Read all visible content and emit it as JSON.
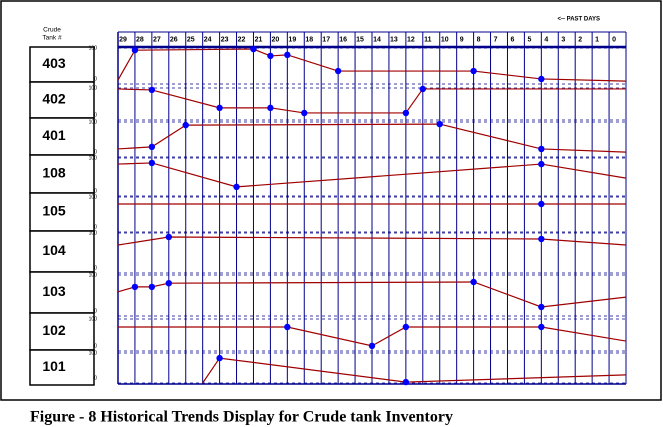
{
  "chart_data": {
    "type": "line",
    "annotation": "<-- PAST DAYS",
    "row_header": [
      "Crude",
      "Tank #"
    ],
    "caption": "Figure - 8 Historical Trends Display for Crude tank Inventory",
    "xlim": [
      29,
      -1
    ],
    "xticks": [
      29,
      28,
      27,
      26,
      25,
      24,
      23,
      22,
      21,
      20,
      19,
      18,
      17,
      16,
      15,
      14,
      13,
      12,
      11,
      10,
      9,
      8,
      7,
      6,
      5,
      4,
      3,
      2,
      1,
      0
    ],
    "ylim": [
      0,
      100
    ],
    "yticks": [
      0,
      100
    ],
    "line_color": "#a00000",
    "marker_color": "#0000ff",
    "grid_color": "#00008b",
    "series": [
      {
        "name": "403",
        "x": [
          29,
          28,
          21,
          20,
          19,
          16,
          8,
          4,
          -1
        ],
        "values": [
          11,
          94,
          97,
          78,
          81,
          36,
          36,
          14,
          8
        ]
      },
      {
        "name": "402",
        "x": [
          29,
          27,
          23,
          20,
          18,
          12,
          11,
          -1
        ],
        "values": [
          97,
          94,
          38,
          38,
          22,
          22,
          97,
          97
        ]
      },
      {
        "name": "401",
        "x": [
          29,
          27,
          25,
          10,
          4,
          -1
        ],
        "values": [
          23,
          29,
          91,
          94,
          23,
          14
        ]
      },
      {
        "name": "108",
        "x": [
          29,
          27,
          22,
          4,
          -1
        ],
        "values": [
          84,
          87,
          24,
          84,
          47
        ]
      },
      {
        "name": "105",
        "x": [
          29,
          4,
          -1
        ],
        "values": [
          80,
          80,
          80
        ]
      },
      {
        "name": "104",
        "x": [
          29,
          26,
          4,
          -1
        ],
        "values": [
          70,
          90,
          85,
          70
        ]
      },
      {
        "name": "103",
        "x": [
          29,
          28,
          27,
          26,
          8,
          4,
          -1
        ],
        "values": [
          59,
          71,
          71,
          80,
          83,
          22,
          46
        ]
      },
      {
        "name": "102",
        "x": [
          29,
          19,
          14,
          12,
          4,
          -1
        ],
        "values": [
          75,
          75,
          16,
          75,
          75,
          31
        ]
      },
      {
        "name": "101",
        "x": [
          24,
          23,
          12,
          -1
        ],
        "values": [
          0,
          83,
          3,
          27
        ]
      }
    ]
  }
}
